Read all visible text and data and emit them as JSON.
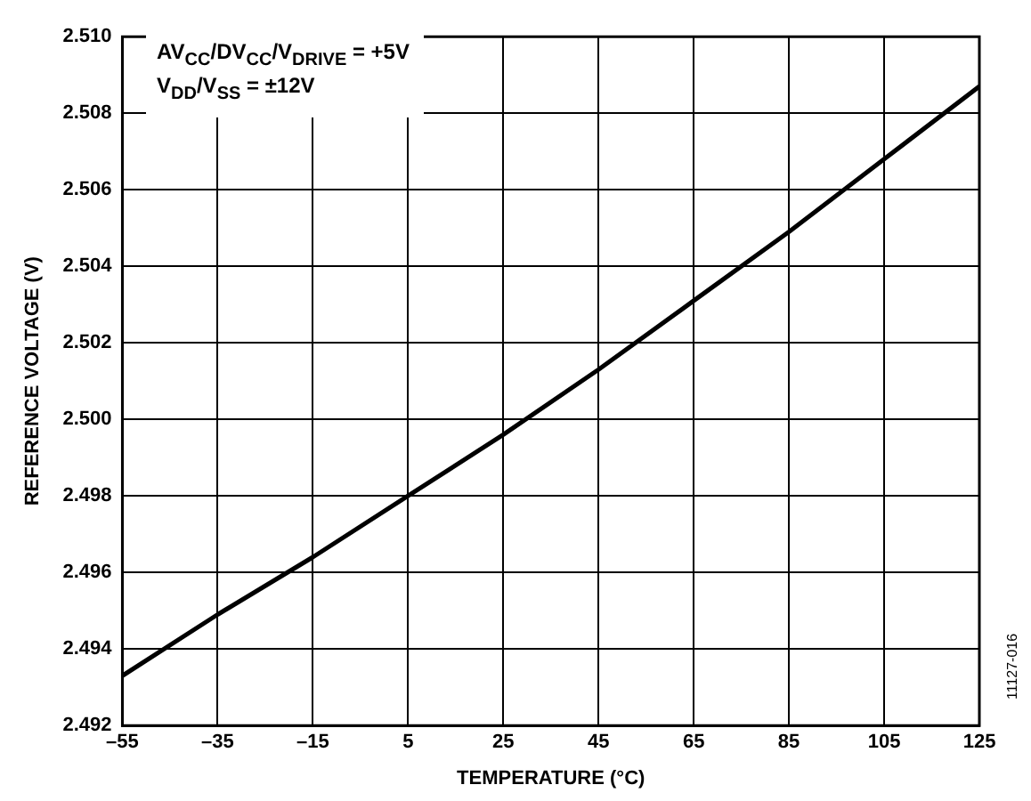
{
  "chart_data": {
    "type": "line",
    "xlabel": "TEMPERATURE (°C)",
    "ylabel": "REFERENCE VOLTAGE (V)",
    "x": [
      -55,
      -35,
      -15,
      5,
      25,
      45,
      65,
      85,
      105,
      125
    ],
    "series": [
      {
        "color": "#000000",
        "values": [
          2.4933,
          2.4949,
          2.4964,
          2.498,
          2.4996,
          2.5013,
          2.5031,
          2.5049,
          2.5068,
          2.5087
        ]
      }
    ],
    "xlim": [
      -55,
      125
    ],
    "ylim": [
      2.492,
      2.51
    ],
    "xticks": [
      {
        "value": -55,
        "label": "–55"
      },
      {
        "value": -35,
        "label": "–35"
      },
      {
        "value": -15,
        "label": "–15"
      },
      5,
      25,
      45,
      65,
      85,
      105,
      125
    ],
    "yticks": [
      2.492,
      2.494,
      2.496,
      2.498,
      {
        "value": 2.5,
        "label": "2.500"
      },
      2.502,
      2.504,
      2.506,
      2.508,
      {
        "value": 2.51,
        "label": "2.510"
      }
    ],
    "grid": true,
    "legend": false,
    "marker": "none",
    "line_style": "solid",
    "annotations": [
      "AV$_{CC}$/DV$_{CC}$/V$_{DRIVE}$ = +5V",
      "V$_{DD}$/V$_{SS}$ = ±12V",
      "11127-016"
    ]
  }
}
